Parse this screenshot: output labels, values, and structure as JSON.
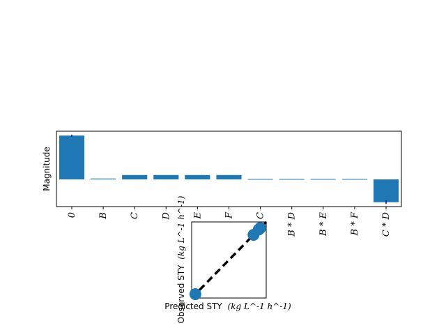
{
  "chart_data": [
    {
      "type": "bar",
      "ylabel": "Magnitude",
      "categories": [
        "0",
        "B",
        "C",
        "D",
        "E",
        "F",
        "C",
        "B * D",
        "B * E",
        "B * F",
        "C * D"
      ],
      "values": [
        1.0,
        0.02,
        0.1,
        0.1,
        0.1,
        0.1,
        0.01,
        0.01,
        0.01,
        0.01,
        -0.52
      ],
      "errors": [
        0.02,
        0.0,
        0.0,
        0.0,
        0.0,
        0.0,
        0.0,
        0.0,
        0.0,
        0.0,
        0.04
      ],
      "ylim": [
        -0.62,
        1.1
      ],
      "bar_color": "#1f77b4",
      "error_color": "#0000cc"
    },
    {
      "type": "scatter",
      "xlabel": "Predicted STY",
      "ylabel": "Observed STY",
      "unit_label": "(kg L^-1 h^-1)",
      "points": [
        {
          "x": 0.05,
          "y": 0.05
        },
        {
          "x": 0.83,
          "y": 0.83
        },
        {
          "x": 0.9,
          "y": 0.9
        },
        {
          "x": 0.92,
          "y": 0.92
        }
      ],
      "xlim": [
        0,
        1
      ],
      "ylim": [
        0,
        1
      ],
      "parity_line": [
        [
          0,
          0
        ],
        [
          1,
          1
        ]
      ],
      "marker_color": "#1f77b4",
      "line_color": "#000000"
    }
  ]
}
